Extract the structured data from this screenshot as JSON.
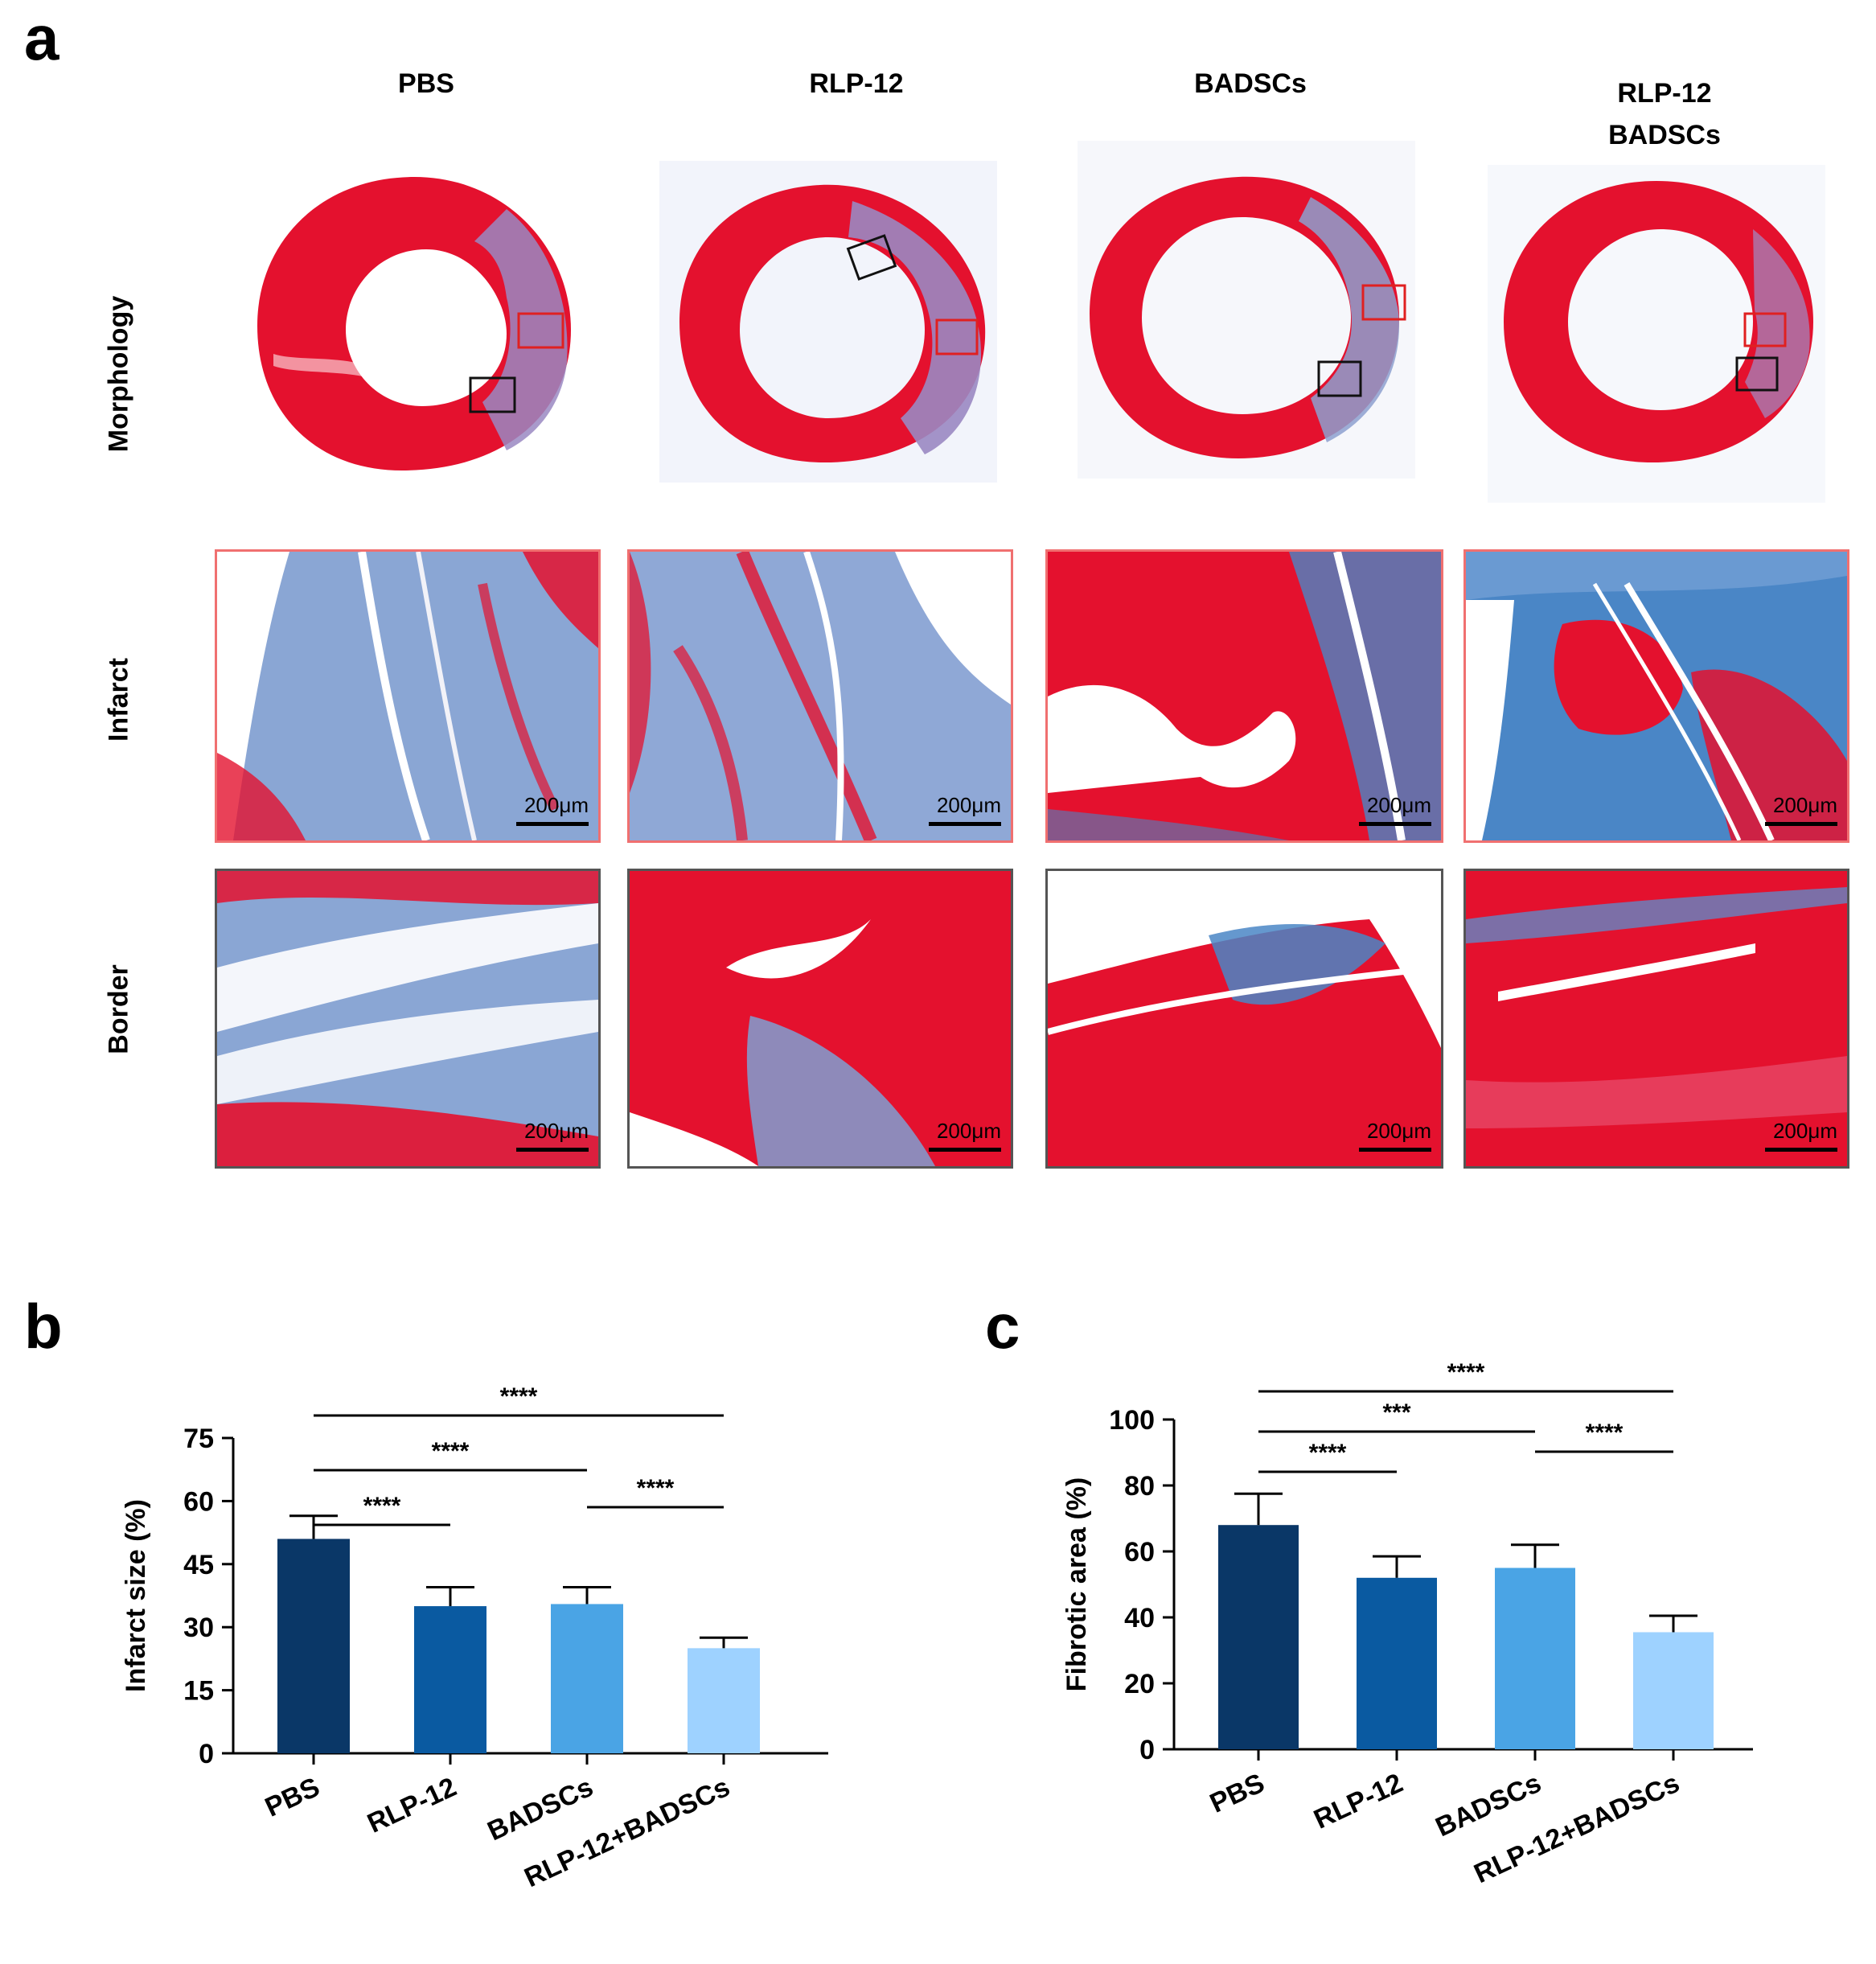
{
  "panel_a": {
    "letter": "a",
    "columns": [
      "PBS",
      "RLP-12",
      "BADSCs",
      "RLP-12\nBADSCs"
    ],
    "rows": [
      "Morphology",
      "Infarct",
      "Border"
    ],
    "scale_label": "200μm",
    "colors": {
      "muscle": "#e4112e",
      "collagen": "#4a86c6",
      "infarct_frame": "#f06060",
      "border_frame": "#444444"
    }
  },
  "chart_data": [
    {
      "type": "bar",
      "panel": "b",
      "categories": [
        "PBS",
        "RLP-12",
        "BADSCs",
        "RLP-12+BADSCs"
      ],
      "values": [
        51,
        35,
        35.5,
        25
      ],
      "errors": [
        5.5,
        4.5,
        4,
        2.5
      ],
      "ylabel": "Infarct size (%)",
      "ylim": [
        0,
        75
      ],
      "yticks": [
        0,
        15,
        30,
        45,
        60,
        75
      ],
      "colors": [
        "#0a3767",
        "#0a5aa1",
        "#4aa4e5",
        "#9ed2ff"
      ],
      "significance": [
        {
          "from": 0,
          "to": 3,
          "label": "****"
        },
        {
          "from": 0,
          "to": 2,
          "label": "****"
        },
        {
          "from": 0,
          "to": 1,
          "label": "****"
        },
        {
          "from": 2,
          "to": 3,
          "label": "****"
        }
      ]
    },
    {
      "type": "bar",
      "panel": "c",
      "categories": [
        "PBS",
        "RLP-12",
        "BADSCs",
        "RLP-12+BADSCs"
      ],
      "values": [
        68,
        52,
        55,
        35.5
      ],
      "errors": [
        9.5,
        6.5,
        7,
        5
      ],
      "ylabel": "Fibrotic area (%)",
      "ylim": [
        0,
        100
      ],
      "yticks": [
        0,
        20,
        40,
        60,
        80,
        100
      ],
      "colors": [
        "#0a3767",
        "#0a5aa1",
        "#4aa4e5",
        "#9ed2ff"
      ],
      "significance": [
        {
          "from": 0,
          "to": 3,
          "label": "****"
        },
        {
          "from": 0,
          "to": 2,
          "label": "***"
        },
        {
          "from": 0,
          "to": 1,
          "label": "****"
        },
        {
          "from": 2,
          "to": 3,
          "label": "****"
        }
      ]
    }
  ]
}
